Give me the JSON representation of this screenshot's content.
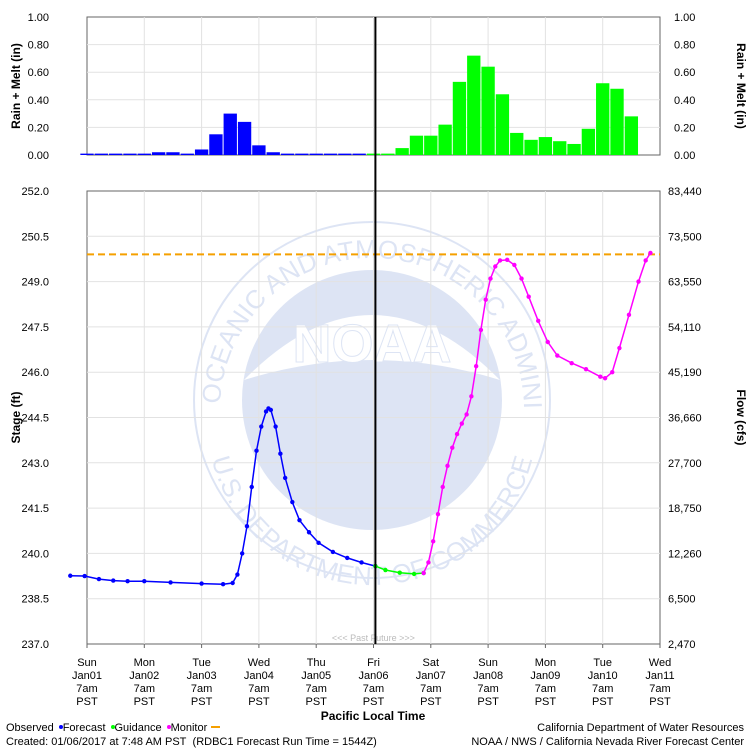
{
  "chart_data": [
    {
      "type": "bar",
      "name": "precipitation",
      "ylabel": "Rain + Melt (in)",
      "ylabel_right": "Rain + Melt (in)",
      "ylim": [
        0,
        1.0
      ],
      "y_ticks": [
        "1.00",
        "0.80",
        "0.60",
        "0.40",
        "0.20",
        "0.00"
      ],
      "interval_hours": 6,
      "start": "Jan01 04:00",
      "series": [
        {
          "kind": "observed",
          "color": "#0000ff",
          "values": [
            0.01,
            0.01,
            0.01,
            0.01,
            0.01,
            0.02,
            0.02,
            0.01,
            0.04,
            0.15,
            0.3,
            0.24,
            0.07,
            0.02,
            0.01,
            0.01,
            0.01,
            0.01,
            0.01,
            0.01
          ]
        },
        {
          "kind": "forecast",
          "color": "#00ff00",
          "values": [
            0.01,
            0.01,
            0.05,
            0.14,
            0.14,
            0.22,
            0.53,
            0.72,
            0.64,
            0.44,
            0.16,
            0.11,
            0.13,
            0.1,
            0.08,
            0.19,
            0.52,
            0.48,
            0.28
          ]
        }
      ]
    },
    {
      "type": "line",
      "name": "hydrograph",
      "xlabel": "Pacific Local Time",
      "ylabel": "Stage (ft)",
      "ylabel_right": "Flow (cfs)",
      "ylim": [
        237.0,
        252.0
      ],
      "y_ticks": [
        "252.0",
        "250.5",
        "249.0",
        "247.5",
        "246.0",
        "244.5",
        "243.0",
        "241.5",
        "240.0",
        "238.5",
        "237.0"
      ],
      "y_ticks_right": [
        "83,440",
        "73,500",
        "63,550",
        "54,110",
        "45,190",
        "36,660",
        "27,700",
        "18,750",
        "12,260",
        "6,500",
        "2,470"
      ],
      "x_ticks": [
        {
          "day": "Sun",
          "date": "Jan01",
          "time": "7am",
          "tz": "PST"
        },
        {
          "day": "Mon",
          "date": "Jan02",
          "time": "7am",
          "tz": "PST"
        },
        {
          "day": "Tue",
          "date": "Jan03",
          "time": "7am",
          "tz": "PST"
        },
        {
          "day": "Wed",
          "date": "Jan04",
          "time": "7am",
          "tz": "PST"
        },
        {
          "day": "Thu",
          "date": "Jan05",
          "time": "7am",
          "tz": "PST"
        },
        {
          "day": "Fri",
          "date": "Jan06",
          "time": "7am",
          "tz": "PST"
        },
        {
          "day": "Sat",
          "date": "Jan07",
          "time": "7am",
          "tz": "PST"
        },
        {
          "day": "Sun",
          "date": "Jan08",
          "time": "7am",
          "tz": "PST"
        },
        {
          "day": "Mon",
          "date": "Jan09",
          "time": "7am",
          "tz": "PST"
        },
        {
          "day": "Tue",
          "date": "Jan10",
          "time": "7am",
          "tz": "PST"
        },
        {
          "day": "Wed",
          "date": "Jan11",
          "time": "7am",
          "tz": "PST"
        }
      ],
      "monitor_stage": 249.9,
      "now": "Jan06 07:48",
      "past_future_label": "<<< Past   Future >>>",
      "series": [
        {
          "kind": "observed",
          "color": "#0000ff",
          "points": [
            [
              "Jan01 00:00",
              239.26
            ],
            [
              "Jan01 06:00",
              239.25
            ],
            [
              "Jan01 12:00",
              239.15
            ],
            [
              "Jan01 18:00",
              239.1
            ],
            [
              "Jan02 00:00",
              239.08
            ],
            [
              "Jan02 07:00",
              239.08
            ],
            [
              "Jan02 18:00",
              239.04
            ],
            [
              "Jan03 07:00",
              239.0
            ],
            [
              "Jan03 16:00",
              238.98
            ],
            [
              "Jan03 20:00",
              239.02
            ],
            [
              "Jan03 22:00",
              239.3
            ],
            [
              "Jan04 00:00",
              240.0
            ],
            [
              "Jan04 02:00",
              240.9
            ],
            [
              "Jan04 04:00",
              242.2
            ],
            [
              "Jan04 06:00",
              243.4
            ],
            [
              "Jan04 08:00",
              244.2
            ],
            [
              "Jan04 10:00",
              244.7
            ],
            [
              "Jan04 11:00",
              244.8
            ],
            [
              "Jan04 12:00",
              244.75
            ],
            [
              "Jan04 14:00",
              244.2
            ],
            [
              "Jan04 16:00",
              243.3
            ],
            [
              "Jan04 18:00",
              242.5
            ],
            [
              "Jan04 21:00",
              241.7
            ],
            [
              "Jan05 00:00",
              241.1
            ],
            [
              "Jan05 04:00",
              240.7
            ],
            [
              "Jan05 08:00",
              240.35
            ],
            [
              "Jan05 14:00",
              240.05
            ],
            [
              "Jan05 20:00",
              239.85
            ],
            [
              "Jan06 02:00",
              239.7
            ],
            [
              "Jan06 07:48",
              239.58
            ]
          ]
        },
        {
          "kind": "guidance",
          "color": "#00ff00",
          "points": [
            [
              "Jan06 07:48",
              239.58
            ],
            [
              "Jan06 12:00",
              239.45
            ],
            [
              "Jan06 18:00",
              239.36
            ],
            [
              "Jan07 00:00",
              239.32
            ],
            [
              "Jan07 04:00",
              239.35
            ]
          ]
        },
        {
          "kind": "monitor",
          "color": "#ff00ff",
          "points": [
            [
              "Jan07 04:00",
              239.35
            ],
            [
              "Jan07 06:00",
              239.7
            ],
            [
              "Jan07 08:00",
              240.4
            ],
            [
              "Jan07 10:00",
              241.3
            ],
            [
              "Jan07 12:00",
              242.2
            ],
            [
              "Jan07 14:00",
              242.9
            ],
            [
              "Jan07 16:00",
              243.5
            ],
            [
              "Jan07 18:00",
              243.95
            ],
            [
              "Jan07 20:00",
              244.3
            ],
            [
              "Jan07 22:00",
              244.6
            ],
            [
              "Jan08 00:00",
              245.2
            ],
            [
              "Jan08 02:00",
              246.2
            ],
            [
              "Jan08 04:00",
              247.4
            ],
            [
              "Jan08 06:00",
              248.4
            ],
            [
              "Jan08 08:00",
              249.1
            ],
            [
              "Jan08 10:00",
              249.5
            ],
            [
              "Jan08 12:00",
              249.7
            ],
            [
              "Jan08 15:00",
              249.72
            ],
            [
              "Jan08 18:00",
              249.55
            ],
            [
              "Jan08 21:00",
              249.1
            ],
            [
              "Jan09 00:00",
              248.5
            ],
            [
              "Jan09 04:00",
              247.7
            ],
            [
              "Jan09 08:00",
              247.0
            ],
            [
              "Jan09 12:00",
              246.55
            ],
            [
              "Jan09 18:00",
              246.3
            ],
            [
              "Jan10 00:00",
              246.1
            ],
            [
              "Jan10 06:00",
              245.85
            ],
            [
              "Jan10 08:00",
              245.8
            ],
            [
              "Jan10 11:00",
              246.0
            ],
            [
              "Jan10 14:00",
              246.8
            ],
            [
              "Jan10 18:00",
              247.9
            ],
            [
              "Jan10 22:00",
              249.0
            ],
            [
              "Jan11 01:00",
              249.7
            ],
            [
              "Jan11 03:00",
              249.95
            ]
          ]
        }
      ]
    }
  ],
  "legend": {
    "observed": "Observed",
    "forecast": "Forecast",
    "guidance": "Guidance",
    "monitor": "Monitor",
    "observed_color": "#0000ff",
    "guidance_color": "#00ff00",
    "monitor_color": "#ff00ff",
    "monitor_line_color": "#f5a000"
  },
  "watermark": {
    "logo_text": "NOAA",
    "ring_top": "NATIONAL OCEANIC AND ATMOSPHERIC ADMINISTRATION",
    "ring_bottom": "U.S. DEPARTMENT OF COMMERCE"
  },
  "footer": {
    "created": "Created: 01/06/2017 at 7:48 AM PST",
    "run_time": "(RDBC1 Forecast Run Time = 1544Z)",
    "agency_line1": "California Department of Water Resources",
    "agency_line2": "NOAA / NWS / California Nevada River Forecast Center"
  }
}
